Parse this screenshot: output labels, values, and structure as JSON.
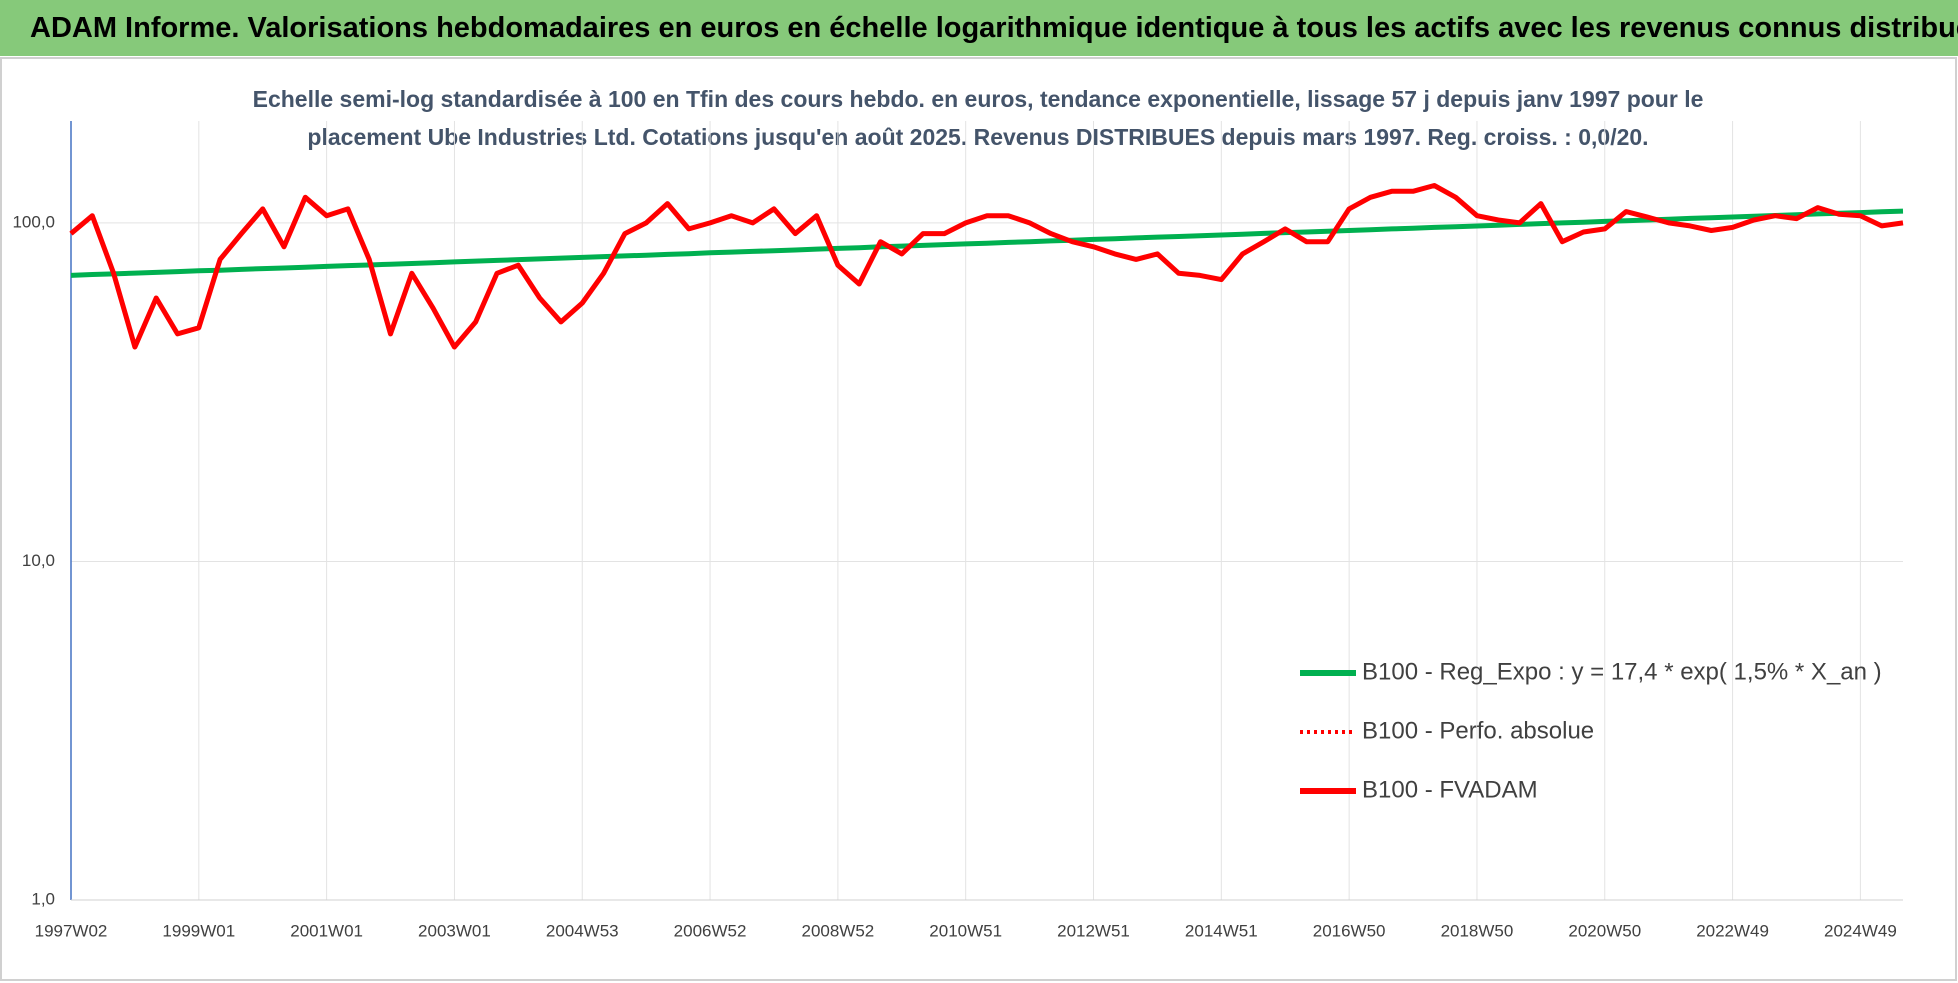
{
  "chart_data": {
    "type": "line",
    "title": "ADAM Informe. Valorisations hebdomadaires en euros en échelle logarithmique identique à tous les actifs avec les revenus connus distribués",
    "subtitle": [
      "Echelle semi-log standardisée à 100 en Tfin des cours hebdo. en euros, tendance exponentielle, lissage 57 j depuis janv 1997 pour le",
      "placement Ube Industries Ltd. Cotations jusqu'en août 2025. Revenus DISTRIBUES depuis mars 1997. Reg. croiss. : 0,0/20."
    ],
    "log_scale": true,
    "grid": true,
    "legend": "lower right",
    "ylim": [
      1,
      200
    ],
    "yticks": [
      {
        "value": 1,
        "label": "1,0"
      },
      {
        "value": 10,
        "label": "10,0"
      },
      {
        "value": 100,
        "label": "100,0"
      }
    ],
    "categories": [
      "1997W02",
      null,
      null,
      null,
      null,
      null,
      "1999W01",
      null,
      null,
      null,
      null,
      null,
      "2001W01",
      null,
      null,
      null,
      null,
      null,
      "2003W01",
      null,
      null,
      null,
      null,
      null,
      "2004W53",
      null,
      null,
      null,
      null,
      null,
      "2006W52",
      null,
      null,
      null,
      null,
      null,
      "2008W52",
      null,
      null,
      null,
      null,
      null,
      "2010W51",
      null,
      null,
      null,
      null,
      null,
      "2012W51",
      null,
      null,
      null,
      null,
      null,
      "2014W51",
      null,
      null,
      null,
      null,
      null,
      "2016W50",
      null,
      null,
      null,
      null,
      null,
      "2018W50",
      null,
      null,
      null,
      null,
      null,
      "2020W50",
      null,
      null,
      null,
      null,
      null,
      "2022W49",
      null,
      null,
      null,
      null,
      null,
      "2024W49",
      null,
      null
    ],
    "series": [
      {
        "name": "B100 - Reg_Expo : y = 17,4 * exp( 1,5% *  X_an )",
        "color": "#00b050",
        "line_style": "solid",
        "values": [
          70.0,
          70.4,
          70.7,
          71.1,
          71.4,
          71.8,
          72.2,
          72.5,
          72.9,
          73.3,
          73.6,
          74.0,
          74.4,
          74.8,
          75.1,
          75.5,
          75.9,
          76.3,
          76.7,
          77.1,
          77.5,
          77.9,
          78.3,
          78.7,
          79.1,
          79.5,
          79.9,
          80.3,
          80.7,
          81.1,
          81.6,
          82.0,
          82.4,
          82.8,
          83.2,
          83.7,
          84.1,
          84.5,
          85.0,
          85.4,
          85.8,
          86.3,
          86.7,
          87.1,
          87.6,
          88.0,
          88.5,
          88.9,
          89.4,
          89.8,
          90.3,
          90.8,
          91.2,
          91.7,
          92.1,
          92.6,
          93.1,
          93.6,
          94.0,
          94.5,
          95.0,
          95.5,
          96.0,
          96.5,
          97.0,
          97.4,
          97.9,
          98.4,
          99.0,
          99.5,
          100.0,
          100.5,
          101.0,
          101.5,
          102.0,
          102.5,
          103.1,
          103.6,
          104.1,
          104.6,
          105.2,
          105.7,
          106.3,
          106.8,
          107.3,
          107.9,
          108.4
        ]
      },
      {
        "name": "B100 - Perfo. absolue",
        "color": "#ff0000",
        "line_style": "dotted",
        "values": [
          93,
          105,
          71,
          43,
          60,
          47,
          49,
          78,
          93,
          110,
          85,
          119,
          105,
          110,
          78,
          47,
          71,
          56,
          43,
          51,
          71,
          75,
          60,
          51,
          58,
          71,
          93,
          100,
          114,
          96,
          100,
          105,
          100,
          110,
          93,
          105,
          75,
          66,
          88,
          81,
          93,
          93,
          100,
          105,
          105,
          100,
          93,
          88,
          85,
          81,
          78,
          81,
          71,
          70,
          68,
          81,
          88,
          96,
          88,
          88,
          110,
          119,
          124,
          124,
          129,
          119,
          105,
          102,
          100,
          114,
          88,
          94,
          96,
          108,
          104,
          100,
          98,
          95,
          97,
          102,
          105,
          103,
          111,
          106,
          105,
          98,
          100
        ]
      },
      {
        "name": "B100 - FVADAM",
        "color": "#ff0000",
        "line_style": "solid",
        "values": [
          93,
          105,
          71,
          43,
          60,
          47,
          49,
          78,
          93,
          110,
          85,
          119,
          105,
          110,
          78,
          47,
          71,
          56,
          43,
          51,
          71,
          75,
          60,
          51,
          58,
          71,
          93,
          100,
          114,
          96,
          100,
          105,
          100,
          110,
          93,
          105,
          75,
          66,
          88,
          81,
          93,
          93,
          100,
          105,
          105,
          100,
          93,
          88,
          85,
          81,
          78,
          81,
          71,
          70,
          68,
          81,
          88,
          96,
          88,
          88,
          110,
          119,
          124,
          124,
          129,
          119,
          105,
          102,
          100,
          114,
          88,
          94,
          96,
          108,
          104,
          100,
          98,
          95,
          97,
          102,
          105,
          103,
          111,
          106,
          105,
          98,
          100
        ]
      }
    ]
  }
}
